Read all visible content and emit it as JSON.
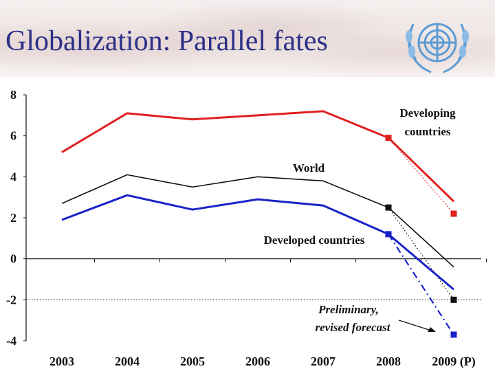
{
  "slide": {
    "title": "Globalization: Parallel fates"
  },
  "logo": {
    "icon": "united-nations-emblem-icon"
  },
  "colors": {
    "developing": "#e02020",
    "world": "#111111",
    "developed": "#1a22c8",
    "title": "#2b2f86"
  },
  "chart_data": {
    "type": "line",
    "title": "",
    "xlabel": "",
    "ylabel": "",
    "categories": [
      "2003",
      "2004",
      "2005",
      "2006",
      "2007",
      "2008",
      "2009 (P)"
    ],
    "ylim": [
      -4,
      8
    ],
    "yticks": [
      "8",
      "6",
      "4",
      "2",
      "0",
      "-2",
      "-4"
    ],
    "reference_line": -2,
    "series": [
      {
        "name": "Developing countries",
        "values": [
          5.2,
          7.1,
          6.8,
          7.0,
          7.2,
          5.9,
          2.8
        ],
        "marker_points": [
          {
            "x": "2008",
            "y": 5.9
          },
          {
            "x": "2009 (P)",
            "y": 2.2
          }
        ]
      },
      {
        "name": "World",
        "values": [
          2.7,
          4.1,
          3.5,
          4.0,
          3.8,
          2.5,
          -0.4
        ],
        "marker_points": [
          {
            "x": "2008",
            "y": 2.5
          },
          {
            "x": "2009 (P)",
            "y": -2.0
          }
        ]
      },
      {
        "name": "Developed countries",
        "values": [
          1.9,
          3.1,
          2.4,
          2.9,
          2.6,
          1.2,
          -1.5
        ],
        "marker_points": [
          {
            "x": "2008",
            "y": 1.2
          },
          {
            "x": "2009 (P)",
            "y": -3.7
          }
        ]
      }
    ],
    "annotation": {
      "line1": "Preliminary,",
      "line2": "revised forecast"
    },
    "series_labels": {
      "developing_line1": "Developing",
      "developing_line2": "countries",
      "world": "World",
      "developed": "Developed countries"
    }
  }
}
